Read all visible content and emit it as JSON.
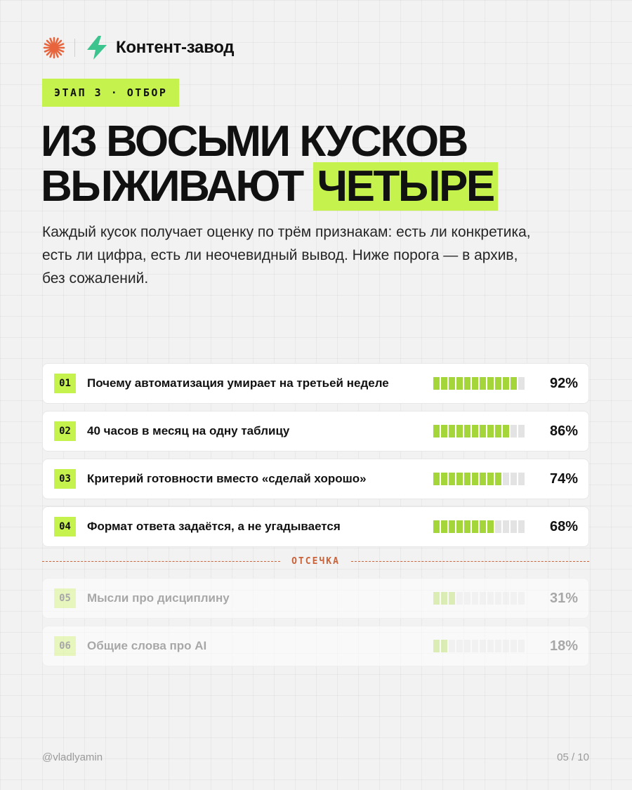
{
  "header": {
    "brand": "Контент-завод",
    "logo_icon": "asterisk-icon",
    "brand_icon": "lightning-icon"
  },
  "stage_label": "ЭТАП 3 · ОТБОР",
  "title": {
    "line1": "ИЗ ВОСЬМИ КУСКОВ",
    "line2_plain": "ВЫЖИВАЮТ",
    "line2_highlight": "ЧЕТЫРЕ"
  },
  "lead": "Каждый кусок получает оценку по трём признакам: есть ли конкретика, есть ли цифра, есть ли неочевидный вывод. Ниже порога — в архив, без сожалений.",
  "colors": {
    "accent": "#c6f24e",
    "bar_fill": "#a4d63a",
    "cutoff": "#c8633a"
  },
  "items": [
    {
      "num": "01",
      "label": "Почему автоматизация умирает на третьей неделе",
      "score": 92,
      "pct": "92%"
    },
    {
      "num": "02",
      "label": "40 часов в месяц на одну таблицу",
      "score": 86,
      "pct": "86%"
    },
    {
      "num": "03",
      "label": "Критерий готовности вместо «сделай хорошо»",
      "score": 74,
      "pct": "74%"
    },
    {
      "num": "04",
      "label": "Формат ответа задаётся, а не угадывается",
      "score": 68,
      "pct": "68%"
    }
  ],
  "cutoff_label": "ОТСЕЧКА",
  "rejected": [
    {
      "num": "05",
      "label": "Мысли про дисциплину",
      "score": 31,
      "pct": "31%"
    },
    {
      "num": "06",
      "label": "Общие слова про AI",
      "score": 18,
      "pct": "18%"
    }
  ],
  "footer": {
    "handle": "@vladlyamin",
    "page": "05 / 10"
  }
}
